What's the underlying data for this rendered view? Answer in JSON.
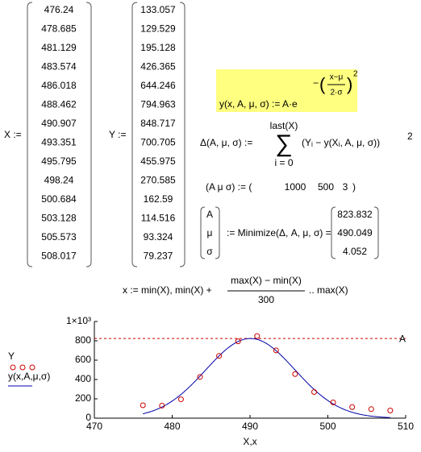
{
  "X": {
    "label": "X :=",
    "values": [
      476.24,
      478.685,
      481.129,
      483.574,
      486.018,
      488.462,
      490.907,
      493.351,
      495.795,
      498.24,
      500.684,
      503.128,
      505.573,
      508.017
    ]
  },
  "Y": {
    "label": "Y :=",
    "values": [
      133.057,
      129.529,
      195.128,
      426.365,
      644.246,
      794.963,
      848.717,
      700.705,
      455.975,
      270.585,
      162.59,
      114.516,
      93.324,
      79.237
    ]
  },
  "model": {
    "lhs": "y(x, A, μ, σ) := A·e",
    "exp_sign": "−",
    "exp_num": "x−μ",
    "exp_den": "2·σ",
    "exp_power": "2"
  },
  "delta": {
    "lhs": "Δ(A, μ, σ) :=",
    "sum_top": "last(X)",
    "sum_bottom": "i = 0",
    "summand": "(Yᵢ − y(Xᵢ, A, μ, σ))",
    "power": "2"
  },
  "guess": {
    "lhs": "(A   μ   σ) := (",
    "values": [
      1000,
      500,
      3
    ],
    "close": ")"
  },
  "minimize": {
    "vars": [
      "A",
      "μ",
      "σ"
    ],
    "expr": ":= Minimize(Δ, A, μ, σ) =",
    "results": [
      823.832,
      490.049,
      4.052
    ]
  },
  "range": {
    "lhs": "x := min(X), min(X) +",
    "num": "max(X) − min(X)",
    "den": "300",
    "rhs": ".. max(X)"
  },
  "plot": {
    "xlim": [
      470,
      510
    ],
    "xticks": [
      470,
      480,
      490,
      500,
      510
    ],
    "ylim": [
      0,
      1000
    ],
    "yticks": [
      0,
      200,
      400,
      600,
      800,
      {
        "value": 1000,
        "label": "1×10³"
      }
    ],
    "xlabel": "X,x",
    "legend": [
      "Y",
      "y(x,A,μ,σ)"
    ],
    "marker_label": "A",
    "point_color": "#cc0000",
    "curve_color": "#0000aa",
    "marker_color": "#cc0000"
  }
}
